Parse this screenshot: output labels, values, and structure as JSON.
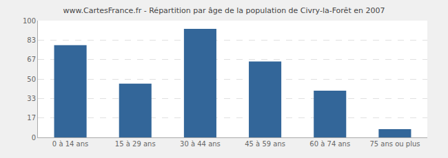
{
  "chart_data": {
    "type": "bar",
    "title": "www.CartesFrance.fr - Répartition par âge de la population de Civry-la-Forêt en 2007",
    "categories": [
      "0 à 14 ans",
      "15 à 29 ans",
      "30 à 44 ans",
      "45 à 59 ans",
      "60 à 74 ans",
      "75 ans ou plus"
    ],
    "values": [
      79,
      46,
      93,
      65,
      40,
      7
    ],
    "color": "#336699",
    "ylim": [
      0,
      100
    ],
    "yticks": [
      0,
      17,
      33,
      50,
      67,
      83,
      100
    ],
    "grid": true
  }
}
